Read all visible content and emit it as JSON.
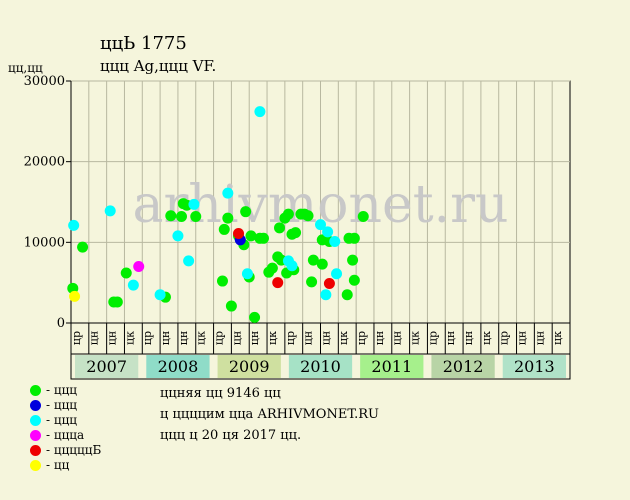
{
  "header": {
    "title": "ццЬ 1775",
    "subtitle": "ццц Ag,ццц VF."
  },
  "chart_data": {
    "type": "scatter",
    "title": "ццЬ 1775",
    "ylabel": "цц,цц",
    "ylim": [
      0,
      30000
    ],
    "yticks": [
      0,
      10000,
      20000,
      30000
    ],
    "watermark": "arhivmonet.ru",
    "grid": true,
    "years": [
      "2007",
      "2008",
      "2009",
      "2010",
      "2011",
      "2012",
      "2013"
    ],
    "year_colors": [
      "#c6e2c6",
      "#8fdcc8",
      "#cfe0a0",
      "#a6e2c6",
      "#a6f08c",
      "#b8d4a6",
      "#b0e2c8"
    ],
    "sub_labels": [
      "цр",
      "цн",
      "цн",
      "цк",
      "цр",
      "цн",
      "цн",
      "цк",
      "цр",
      "цн",
      "цн",
      "цк",
      "цр",
      "цн",
      "цн",
      "цк",
      "цр",
      "цн",
      "цн",
      "цк",
      "цр",
      "цн",
      "цн",
      "цк",
      "цр",
      "цн",
      "цн",
      "цк"
    ],
    "series": [
      {
        "name": "- ццц",
        "color": "#00ee00",
        "points": [
          [
            0.1,
            4300
          ],
          [
            0.65,
            9400
          ],
          [
            2.4,
            2600
          ],
          [
            2.6,
            2600
          ],
          [
            3.1,
            6200
          ],
          [
            5.3,
            3200
          ],
          [
            5.6,
            13300
          ],
          [
            6.2,
            13200
          ],
          [
            6.3,
            14800
          ],
          [
            6.5,
            14600
          ],
          [
            7.0,
            13200
          ],
          [
            8.5,
            5200
          ],
          [
            8.6,
            11600
          ],
          [
            8.8,
            13000
          ],
          [
            9.0,
            2100
          ],
          [
            9.4,
            10800
          ],
          [
            9.7,
            9700
          ],
          [
            9.8,
            13800
          ],
          [
            10.0,
            5700
          ],
          [
            10.1,
            10800
          ],
          [
            10.3,
            700
          ],
          [
            10.6,
            10500
          ],
          [
            10.8,
            10500
          ],
          [
            11.1,
            6300
          ],
          [
            11.3,
            6800
          ],
          [
            11.6,
            8200
          ],
          [
            11.7,
            11800
          ],
          [
            11.8,
            7800
          ],
          [
            12.0,
            13000
          ],
          [
            12.1,
            6200
          ],
          [
            12.2,
            13500
          ],
          [
            12.4,
            11000
          ],
          [
            12.5,
            6600
          ],
          [
            12.6,
            11200
          ],
          [
            12.9,
            13500
          ],
          [
            13.1,
            13500
          ],
          [
            13.3,
            13300
          ],
          [
            13.5,
            5100
          ],
          [
            13.6,
            7800
          ],
          [
            14.1,
            10300
          ],
          [
            14.1,
            7300
          ],
          [
            14.5,
            10100
          ],
          [
            15.5,
            3500
          ],
          [
            15.6,
            10500
          ],
          [
            15.8,
            7800
          ],
          [
            15.9,
            10500
          ],
          [
            15.9,
            5300
          ],
          [
            16.4,
            13200
          ]
        ]
      },
      {
        "name": "- ццц",
        "color": "#0000dd",
        "points": [
          [
            9.5,
            10300
          ]
        ]
      },
      {
        "name": "- ццц",
        "color": "#00ffff",
        "points": [
          [
            0.15,
            12100
          ],
          [
            2.2,
            13900
          ],
          [
            3.5,
            4700
          ],
          [
            5.0,
            3500
          ],
          [
            6.0,
            10800
          ],
          [
            6.6,
            7700
          ],
          [
            6.9,
            14700
          ],
          [
            8.8,
            16100
          ],
          [
            9.9,
            6100
          ],
          [
            10.6,
            26200
          ],
          [
            12.2,
            7700
          ],
          [
            12.4,
            7100
          ],
          [
            14.0,
            12200
          ],
          [
            14.3,
            3500
          ],
          [
            14.4,
            11300
          ],
          [
            14.8,
            10100
          ],
          [
            14.9,
            6100
          ]
        ]
      },
      {
        "name": "- ццца",
        "color": "#ff00ff",
        "points": [
          [
            3.8,
            7000
          ]
        ]
      },
      {
        "name": "- цццццБ",
        "color": "#ee0000",
        "points": [
          [
            9.4,
            11100
          ],
          [
            11.6,
            5000
          ],
          [
            14.5,
            4900
          ]
        ]
      },
      {
        "name": "- цц",
        "color": "#ffff00",
        "points": [
          [
            0.2,
            3300
          ]
        ]
      }
    ]
  },
  "note": {
    "line1": "ццняя цц 9146 цц",
    "line2": "ц ццццим ццa ARHIVMONET.RU",
    "line3": "ццц ц 20 ця 2017 цц."
  }
}
